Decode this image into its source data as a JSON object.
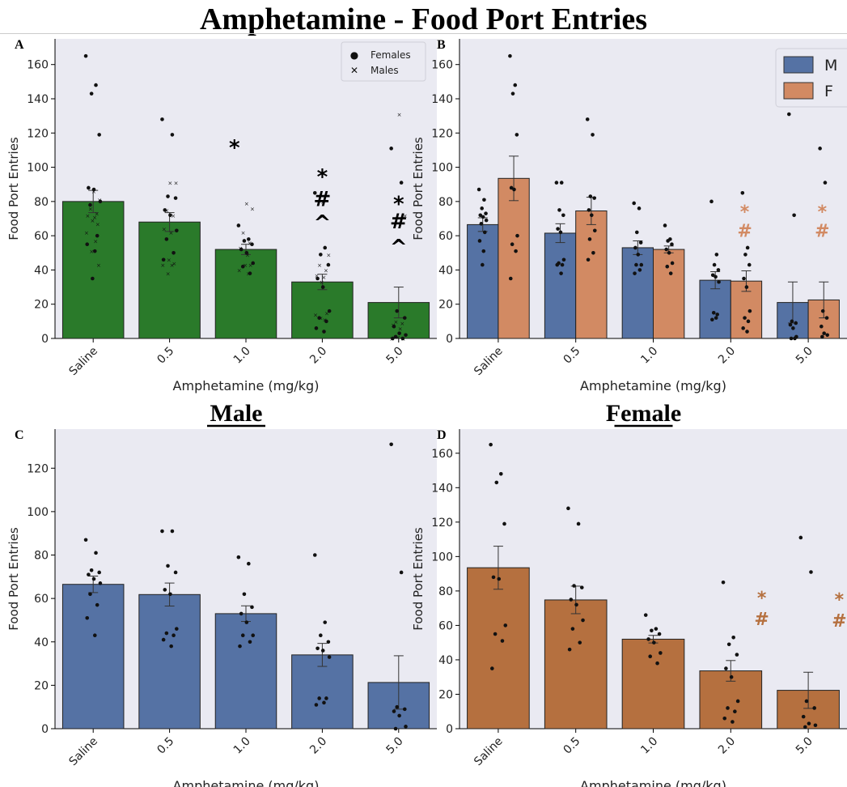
{
  "title": "Amphetamine - Food Port Entries",
  "colors": {
    "green": "#2a7a2a",
    "blue": "#5572a4",
    "orange_b": "#d28a63",
    "orange_d": "#b5703f",
    "plot_bg": "#eaeaf2",
    "marker_b": "#d28a63",
    "marker_d": "#b5703f"
  },
  "chart_data": [
    {
      "panel": "A",
      "type": "bar",
      "title": "",
      "xlabel": "Amphetamine (mg/kg)",
      "ylabel": "Food Port Entries",
      "categories": [
        "Saline",
        "0.5",
        "1.0",
        "2.0",
        "5.0"
      ],
      "ylim": [
        0,
        175
      ],
      "yticks": [
        "0",
        "20",
        "40",
        "60",
        "80",
        "100",
        "120",
        "140",
        "160"
      ],
      "values": [
        80,
        68,
        52,
        33,
        21
      ],
      "errors": [
        6.5,
        5.5,
        3,
        4.5,
        9
      ],
      "color": "green",
      "grid": false,
      "legend": {
        "placement": "top-right",
        "entries": [
          {
            "label": "Females",
            "marker": "●"
          },
          {
            "label": "Males",
            "marker": "✕"
          }
        ]
      },
      "points_female": [
        [
          165,
          148,
          143,
          119,
          88,
          87,
          80,
          78,
          60,
          55,
          51,
          35
        ],
        [
          128,
          119,
          83,
          82,
          75,
          72,
          63,
          58,
          50,
          46
        ],
        [
          66,
          58,
          57,
          55,
          52,
          50,
          44,
          42,
          38
        ],
        [
          85,
          53,
          49,
          43,
          35,
          30,
          16,
          12,
          10,
          6,
          4
        ],
        [
          111,
          91,
          16,
          12,
          7,
          3,
          2,
          1,
          0,
          0
        ]
      ],
      "points_male": [
        [
          86,
          81,
          76,
          73,
          72,
          71,
          69,
          67,
          62,
          57,
          51,
          43
        ],
        [
          91,
          91,
          75,
          72,
          64,
          62,
          46,
          44,
          43,
          43,
          38
        ],
        [
          79,
          76,
          62,
          56,
          53,
          49,
          43,
          43,
          40,
          38
        ],
        [
          80,
          49,
          43,
          40,
          37,
          36,
          33,
          15,
          14,
          11,
          12
        ],
        [
          131,
          72,
          10,
          9,
          8,
          6,
          1,
          0,
          0
        ]
      ],
      "annotations": [
        {
          "index": 1.85,
          "y": 114,
          "text": "*"
        },
        {
          "index": 3,
          "y": 97,
          "text": "*"
        },
        {
          "index": 3,
          "y": 82,
          "text": "#"
        },
        {
          "index": 3,
          "y": 68,
          "text": "^"
        },
        {
          "index": 4,
          "y": 81,
          "text": "*"
        },
        {
          "index": 4,
          "y": 69,
          "text": "#"
        },
        {
          "index": 4,
          "y": 54,
          "text": "^"
        }
      ]
    },
    {
      "panel": "B",
      "type": "bar",
      "title": "",
      "xlabel": "Amphetamine (mg/kg)",
      "ylabel": "Food Port Entries",
      "categories": [
        "Saline",
        "0.5",
        "1.0",
        "2.0",
        "5.0"
      ],
      "ylim": [
        0,
        175
      ],
      "yticks": [
        "0",
        "20",
        "40",
        "60",
        "80",
        "100",
        "120",
        "140",
        "160"
      ],
      "series": [
        {
          "name": "M",
          "color": "blue",
          "values": [
            66.5,
            61.5,
            53,
            34,
            21
          ],
          "errors": [
            4,
            5.5,
            4,
            5,
            12
          ],
          "points": [
            [
              87,
              81,
              76,
              73,
              72,
              71,
              69,
              67,
              62,
              57,
              51,
              43
            ],
            [
              91,
              91,
              75,
              72,
              64,
              62,
              46,
              44,
              43,
              43,
              38
            ],
            [
              79,
              76,
              62,
              56,
              53,
              49,
              43,
              43,
              40,
              38
            ],
            [
              80,
              49,
              43,
              40,
              37,
              36,
              33,
              15,
              14,
              11,
              12
            ],
            [
              131,
              72,
              10,
              9,
              8,
              6,
              1,
              0,
              0
            ]
          ]
        },
        {
          "name": "F",
          "color": "orange_b",
          "values": [
            93.5,
            74.5,
            52,
            33.5,
            22.5
          ],
          "errors": [
            13,
            8,
            2,
            6,
            10.5
          ],
          "points": [
            [
              165,
              148,
              143,
              119,
              88,
              87,
              60,
              55,
              51,
              35
            ],
            [
              128,
              119,
              83,
              82,
              75,
              72,
              63,
              58,
              50,
              46
            ],
            [
              66,
              58,
              57,
              55,
              52,
              50,
              44,
              42,
              38
            ],
            [
              85,
              53,
              49,
              43,
              35,
              30,
              16,
              12,
              10,
              6,
              4
            ],
            [
              111,
              91,
              16,
              12,
              7,
              3,
              2,
              1
            ]
          ]
        }
      ],
      "legend": {
        "placement": "top-right"
      },
      "annotations": [
        {
          "index": 3.18,
          "y": 77,
          "text": "*",
          "color": "marker_b"
        },
        {
          "index": 3.18,
          "y": 64,
          "text": "#",
          "color": "marker_b"
        },
        {
          "index": 4.18,
          "y": 77,
          "text": "*",
          "color": "marker_b"
        },
        {
          "index": 4.18,
          "y": 64,
          "text": "#",
          "color": "marker_b"
        }
      ]
    },
    {
      "panel": "C",
      "type": "bar",
      "title": "Male",
      "xlabel": "Amphetamine (mg/kg)",
      "ylabel": "Food Port Entries",
      "categories": [
        "Saline",
        "0.5",
        "1.0",
        "2.0",
        "5.0"
      ],
      "ylim": [
        0,
        138
      ],
      "yticks": [
        "0",
        "20",
        "40",
        "60",
        "80",
        "100",
        "120"
      ],
      "values": [
        66.5,
        61.8,
        53,
        34,
        21.3
      ],
      "errors": [
        3.8,
        5.3,
        3.6,
        5.3,
        12.3
      ],
      "color": "blue",
      "points": [
        [
          87,
          81,
          73,
          72,
          71,
          69,
          67,
          62,
          57,
          51,
          43
        ],
        [
          91,
          91,
          75,
          72,
          64,
          62,
          46,
          44,
          43,
          41,
          38
        ],
        [
          79,
          76,
          62,
          56,
          53,
          49,
          43,
          43,
          40,
          38
        ],
        [
          80,
          49,
          43,
          40,
          37,
          36,
          33,
          14,
          14,
          11,
          12
        ],
        [
          131,
          72,
          10,
          9,
          8,
          6,
          1,
          0
        ]
      ],
      "annotations": []
    },
    {
      "panel": "D",
      "type": "bar",
      "title": "Female",
      "xlabel": "Amphetamine (mg/kg)",
      "ylabel": "Food Port Entries",
      "categories": [
        "Saline",
        "0.5",
        "1.0",
        "2.0",
        "5.0"
      ],
      "ylim": [
        0,
        174
      ],
      "yticks": [
        "0",
        "20",
        "40",
        "60",
        "80",
        "100",
        "120",
        "140",
        "160"
      ],
      "values": [
        93.5,
        74.8,
        52,
        33.6,
        22.3
      ],
      "errors": [
        12.5,
        8,
        2.2,
        6,
        10.5
      ],
      "color": "orange_d",
      "points": [
        [
          165,
          148,
          143,
          119,
          88,
          87,
          60,
          55,
          51,
          35
        ],
        [
          128,
          119,
          83,
          82,
          75,
          72,
          63,
          58,
          50,
          46
        ],
        [
          66,
          58,
          57,
          55,
          52,
          50,
          44,
          42,
          38
        ],
        [
          85,
          53,
          49,
          43,
          35,
          30,
          16,
          12,
          10,
          6,
          4
        ],
        [
          111,
          91,
          16,
          12,
          7,
          3,
          2,
          1
        ]
      ],
      "annotations": [
        {
          "index": 3.4,
          "y": 79,
          "text": "*",
          "color": "marker_d"
        },
        {
          "index": 3.4,
          "y": 65,
          "text": "#",
          "color": "marker_d"
        },
        {
          "index": 4.4,
          "y": 78,
          "text": "*",
          "color": "marker_d"
        },
        {
          "index": 4.4,
          "y": 64,
          "text": "#",
          "color": "marker_d"
        }
      ]
    }
  ]
}
